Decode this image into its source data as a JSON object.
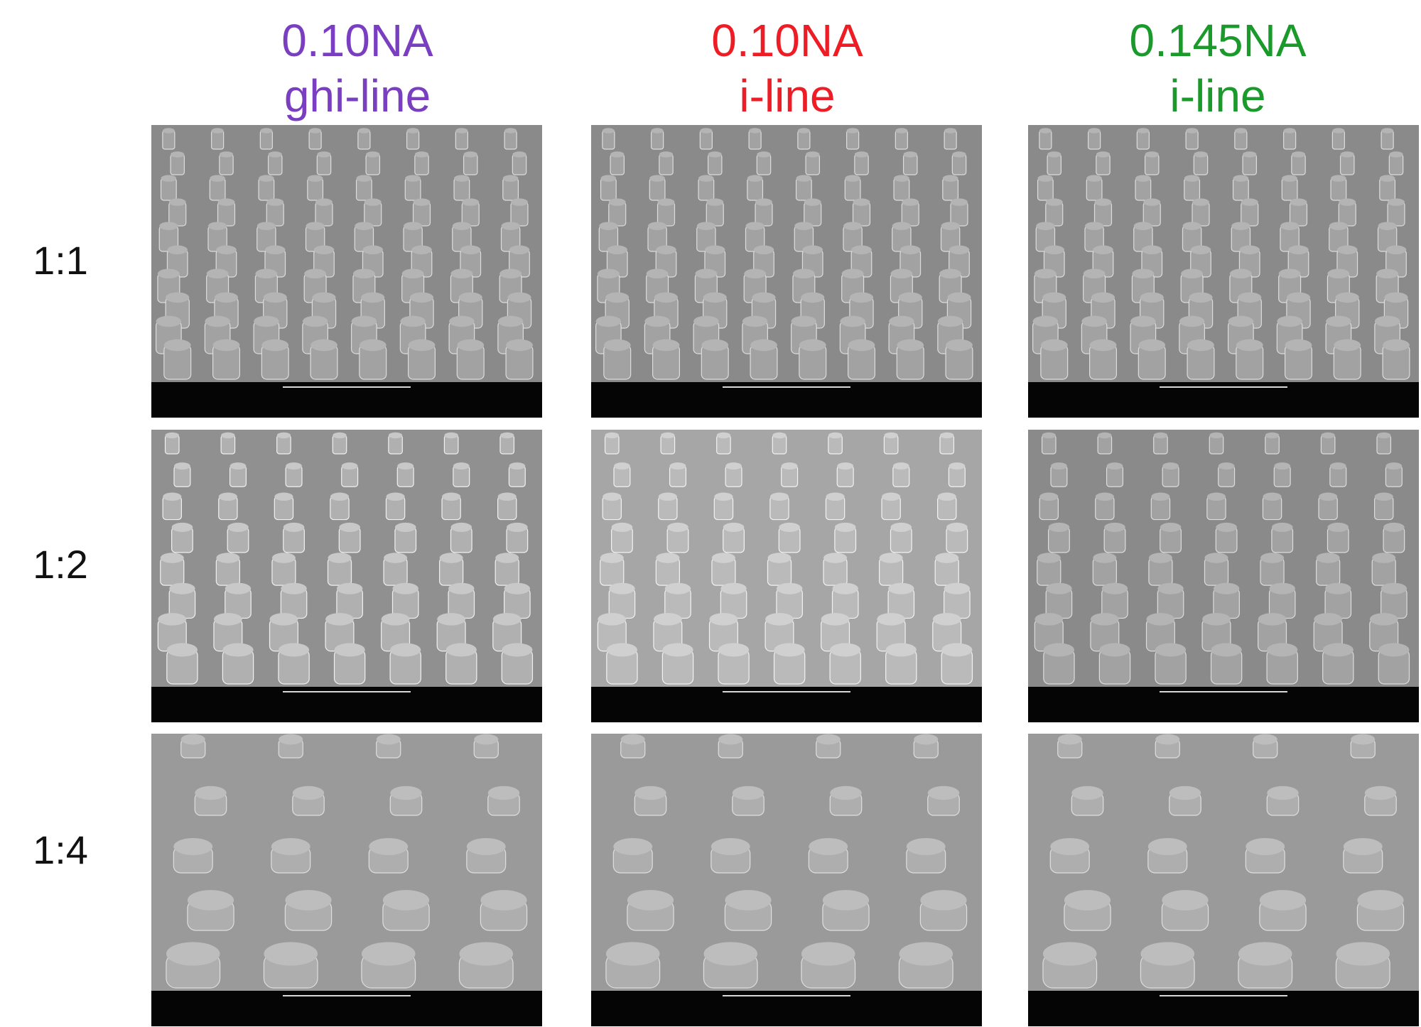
{
  "columns": [
    {
      "na": "0.10NA",
      "line": "ghi-line",
      "color": "#7a3fc0"
    },
    {
      "na": "0.10NA",
      "line": "i-line",
      "color": "#ee1c24"
    },
    {
      "na": "0.145NA",
      "line": "i-line",
      "color": "#1a9a2a"
    }
  ],
  "rows": [
    {
      "label": "1:1"
    },
    {
      "label": "1:2"
    },
    {
      "label": "1:4"
    }
  ]
}
